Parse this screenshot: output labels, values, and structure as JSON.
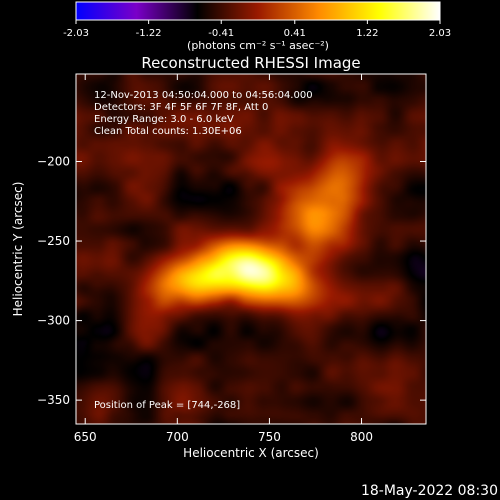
{
  "chart_data": {
    "type": "heatmap",
    "title": "Reconstructed RHESSI Image",
    "xlabel": "Heliocentric X (arcsec)",
    "ylabel": "Heliocentric Y (arcsec)",
    "xlim": [
      645,
      835
    ],
    "ylim": [
      -365,
      -145
    ],
    "x_ticks": [
      650,
      700,
      750,
      800
    ],
    "y_ticks": [
      -200,
      -250,
      -300,
      -350
    ],
    "colorbar": {
      "ticks": [
        "-2.03",
        "-1.22",
        "-0.41",
        "0.41",
        "1.22",
        "2.03"
      ],
      "range": [
        -2.03,
        2.03
      ],
      "units": "(photons cm⁻² s⁻¹ asec⁻²)",
      "stops": [
        "#0000ff",
        "#7a00c8",
        "#000000",
        "#9a1a00",
        "#ff8a00",
        "#ffff00",
        "#ffffff"
      ]
    },
    "annotations": [
      "12-Nov-2013 04:50:04.000 to 04:56:04.000",
      "Detectors: 3F 4F 5F 6F 7F 8F, Att 0",
      "Energy Range: 3.0 - 6.0 keV",
      "Clean     Total counts: 1.30E+06"
    ],
    "peak_label": "Position of Peak = [744,-268]",
    "peak": [
      744,
      -268
    ],
    "timestamp": "18-May-2022 08:30",
    "sources": [
      {
        "x": 744,
        "y": -268,
        "value": 2.03,
        "sigma_x": 20,
        "sigma_y": 11,
        "angle_deg": -28
      },
      {
        "x": 712,
        "y": -275,
        "value": 1.6,
        "sigma_x": 18,
        "sigma_y": 10,
        "angle_deg": -10
      },
      {
        "x": 772,
        "y": -236,
        "value": 1.2,
        "sigma_x": 13,
        "sigma_y": 18,
        "angle_deg": 30
      },
      {
        "x": 788,
        "y": -212,
        "value": 0.7,
        "sigma_x": 12,
        "sigma_y": 14,
        "angle_deg": 0
      },
      {
        "x": 745,
        "y": -200,
        "value": 0.35,
        "sigma_x": 16,
        "sigma_y": 8,
        "angle_deg": 10
      },
      {
        "x": 690,
        "y": -290,
        "value": 0.4,
        "sigma_x": 12,
        "sigma_y": 10,
        "angle_deg": 0
      }
    ]
  }
}
